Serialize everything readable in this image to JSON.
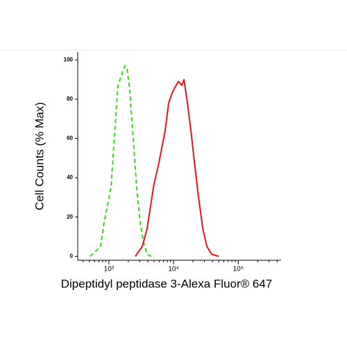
{
  "chart_data": {
    "type": "line",
    "xlabel": "Dipeptidyl peptidase 3-Alexa Fluor® 647",
    "ylabel": "Cell Counts (% Max)",
    "log_x": true,
    "xlim": [
      330,
      460000
    ],
    "ylim": [
      -2,
      104
    ],
    "xticks": [
      {
        "value": 1000,
        "label": "10³"
      },
      {
        "value": 10000,
        "label": "10⁴"
      },
      {
        "value": 100000,
        "label": "10⁵"
      }
    ],
    "x_minor_ticks": [
      400,
      500,
      600,
      700,
      800,
      900,
      2000,
      3000,
      4000,
      5000,
      6000,
      7000,
      8000,
      9000,
      20000,
      30000,
      40000,
      50000,
      60000,
      70000,
      80000,
      90000,
      200000,
      300000,
      400000
    ],
    "yticks": [
      0,
      20,
      40,
      60,
      80,
      100
    ],
    "series": [
      {
        "color": "#33dd11",
        "dashed": true,
        "x": [
          513,
          743,
          841,
          1077,
          1380,
          1561,
          1767,
          1904,
          2101,
          2379,
          2692,
          3048,
          3450,
          3905,
          4532
        ],
        "values": [
          0,
          5,
          17,
          35,
          87,
          92,
          97,
          96,
          85,
          60,
          35,
          17,
          7,
          1,
          0
        ]
      },
      {
        "color": "#ee1111",
        "dashed": false,
        "x": [
          2563,
          3281,
          3898,
          4529,
          5000,
          5797,
          6561,
          7431,
          8408,
          9509,
          10510,
          11890,
          13460,
          14490,
          16400,
          18560,
          21020,
          24380,
          28300,
          32810,
          39000,
          50000
        ],
        "values": [
          0,
          5,
          14,
          28,
          37,
          46,
          55,
          64,
          78,
          83,
          86,
          89,
          87,
          90,
          78,
          64,
          48,
          30,
          14,
          5,
          1,
          0
        ]
      }
    ]
  }
}
